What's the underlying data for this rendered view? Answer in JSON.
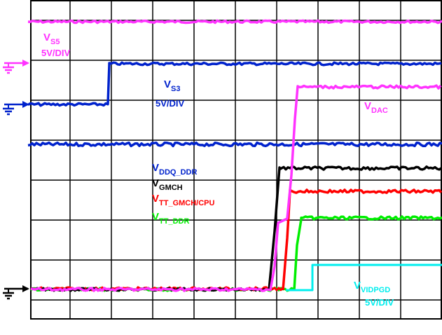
{
  "chart_data": {
    "type": "line",
    "grid": true,
    "grid_divisions": {
      "x": 10,
      "y": 8
    },
    "series": [
      {
        "name": "V_S5",
        "color": "#ff33ff"
      },
      {
        "name": "V_S3",
        "color": "#0022cc"
      },
      {
        "name": "V_DDQ_DDR",
        "color": "#0022cc"
      },
      {
        "name": "V_GMCH",
        "color": "#000000"
      },
      {
        "name": "V_TT_GMCH/CPU",
        "color": "#ff0000"
      },
      {
        "name": "V_TT_DDR",
        "color": "#00ee00"
      },
      {
        "name": "V_DAC",
        "color": "#ff33ff"
      },
      {
        "name": "V_VIDPGD",
        "color": "#00eeee"
      }
    ],
    "annotations": [
      {
        "id": "vs5",
        "main": "V",
        "sub": "S5",
        "scale": "5V/DIV",
        "color": "#ff33ff"
      },
      {
        "id": "vs3",
        "main": "V",
        "sub": "S3",
        "scale": "5V/DIV",
        "color": "#0022cc"
      },
      {
        "id": "vdac",
        "main": "V",
        "sub": "DAC",
        "scale": "",
        "color": "#ff33ff"
      },
      {
        "id": "vddq",
        "main": "V",
        "sub": "DDQ_DDR",
        "scale": "",
        "color": "#0022cc"
      },
      {
        "id": "vgmch",
        "main": "V",
        "sub": "GMCH",
        "scale": "",
        "color": "#000000"
      },
      {
        "id": "vtt_gmch",
        "main": "V",
        "sub": "TT_GMCH/CPU",
        "scale": "",
        "color": "#ff0000"
      },
      {
        "id": "vtt_ddr",
        "main": "V",
        "sub": "TT_DDR",
        "scale": "",
        "color": "#00ee00"
      },
      {
        "id": "vvidpgd",
        "main": "V",
        "sub": "VIDPGD",
        "scale": "5V/DIV",
        "color": "#00eeee"
      }
    ]
  }
}
